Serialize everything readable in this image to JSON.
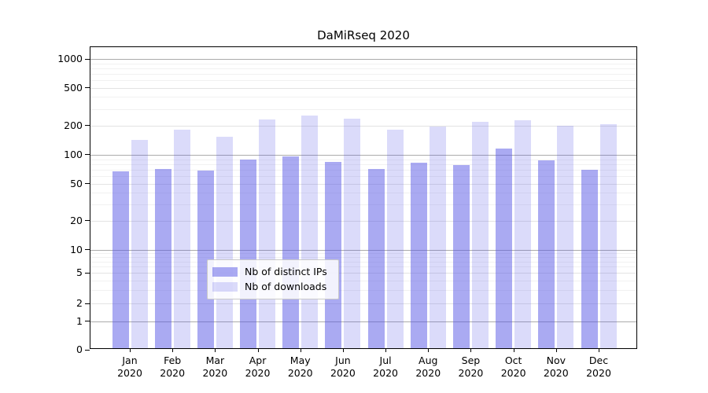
{
  "figure": {
    "title": "DaMiRseq 2020",
    "background_color": "#ffffff",
    "text_color": "#000000"
  },
  "chart_data": {
    "type": "bar",
    "title": "DaMiRseq 2020",
    "categories": [
      "Jan 2020",
      "Feb 2020",
      "Mar 2020",
      "Apr 2020",
      "May 2020",
      "Jun 2020",
      "Jul 2020",
      "Aug 2020",
      "Sep 2020",
      "Oct 2020",
      "Nov 2020",
      "Dec 2020"
    ],
    "series": [
      {
        "name": "Nb of distinct IPs",
        "color": "rgba(85,85,230,0.50)",
        "approx_hex": "#aaaaf0",
        "values": [
          65,
          68,
          66,
          86,
          92,
          82,
          68,
          79,
          75,
          112,
          84,
          67
        ]
      },
      {
        "name": "Nb of downloads",
        "color": "rgba(85,85,230,0.21)",
        "approx_hex": "#dbdbfa",
        "values": [
          137,
          175,
          148,
          226,
          248,
          228,
          176,
          188,
          211,
          219,
          193,
          201
        ]
      }
    ],
    "xlabel": "",
    "ylabel": "",
    "yscale": "log-like (0 baseline with compressed lower decades)",
    "yticks": [
      0,
      1,
      2,
      5,
      10,
      20,
      50,
      100,
      200,
      500,
      1000
    ],
    "minor_gridlines": [
      3,
      4,
      6,
      7,
      8,
      9,
      30,
      40,
      60,
      70,
      80,
      90,
      300,
      400,
      600,
      700,
      800,
      900
    ],
    "ylim": [
      0,
      1250
    ],
    "grid": true,
    "legend": {
      "position": "inside-bottom-center",
      "entries": [
        "Nb of distinct IPs",
        "Nb of downloads"
      ]
    }
  }
}
